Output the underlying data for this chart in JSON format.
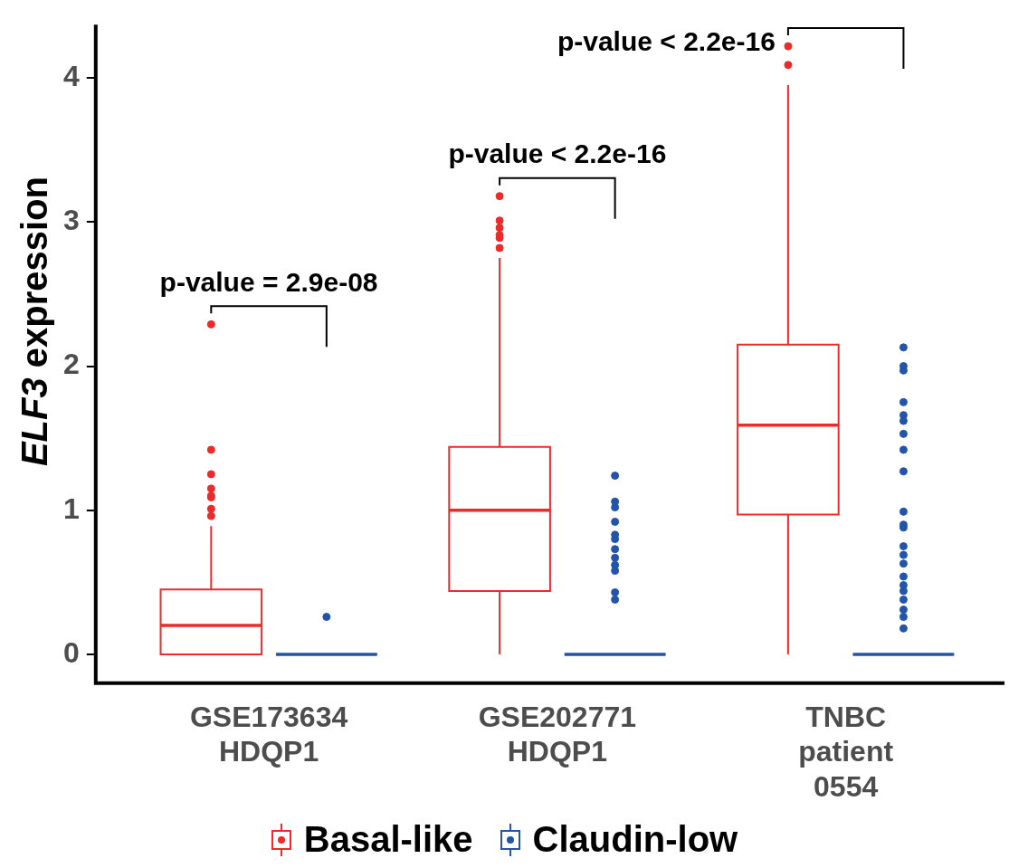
{
  "chart_data": {
    "type": "box",
    "ylabel": "ELF3 expression",
    "categories": [
      "GSE173634 HDQP1",
      "GSE202771 HDQP1",
      "TNBC patient 0554"
    ],
    "ylim": [
      -0.2,
      4.37
    ],
    "yticks": [
      0,
      1,
      2,
      3,
      4
    ],
    "grid": false,
    "legend": "bottom",
    "series": [
      {
        "name": "Basal-like",
        "color": "#ee2a2a",
        "boxes": [
          {
            "low": 0,
            "q1": 0,
            "median": 0.2,
            "q3": 0.45,
            "high": 0.89,
            "outliers": [
              0.96,
              1.01,
              1.09,
              1.1,
              1.15,
              1.25,
              1.42,
              2.29
            ]
          },
          {
            "low": 0,
            "q1": 0.44,
            "median": 1.0,
            "q3": 1.44,
            "high": 2.75,
            "outliers": [
              2.82,
              2.89,
              2.91,
              2.96,
              3.01,
              3.18
            ]
          },
          {
            "low": 0,
            "q1": 0.97,
            "median": 1.59,
            "q3": 2.15,
            "high": 3.95,
            "outliers": [
              4.09,
              4.22
            ]
          }
        ]
      },
      {
        "name": "Claudin-low",
        "color": "#2255aa",
        "boxes": [
          {
            "low": 0,
            "q1": 0,
            "median": 0,
            "q3": 0,
            "high": 0,
            "outliers": [
              0.26
            ]
          },
          {
            "low": 0,
            "q1": 0,
            "median": 0,
            "q3": 0,
            "high": 0,
            "outliers": [
              0.38,
              0.43,
              0.58,
              0.62,
              0.67,
              0.73,
              0.8,
              0.83,
              0.92,
              1.02,
              1.06,
              1.24
            ]
          },
          {
            "low": 0,
            "q1": 0,
            "median": 0,
            "q3": 0,
            "high": 0,
            "outliers": [
              0.18,
              0.26,
              0.31,
              0.38,
              0.44,
              0.48,
              0.54,
              0.63,
              0.69,
              0.75,
              0.88,
              0.9,
              0.99,
              1.27,
              1.42,
              1.53,
              1.62,
              1.66,
              1.75,
              1.97,
              2.0,
              2.13
            ]
          }
        ]
      }
    ],
    "annotations": [
      "p-value = 2.9e-08",
      "p-value < 2.2e-16",
      "p-value < 2.2e-16"
    ]
  }
}
